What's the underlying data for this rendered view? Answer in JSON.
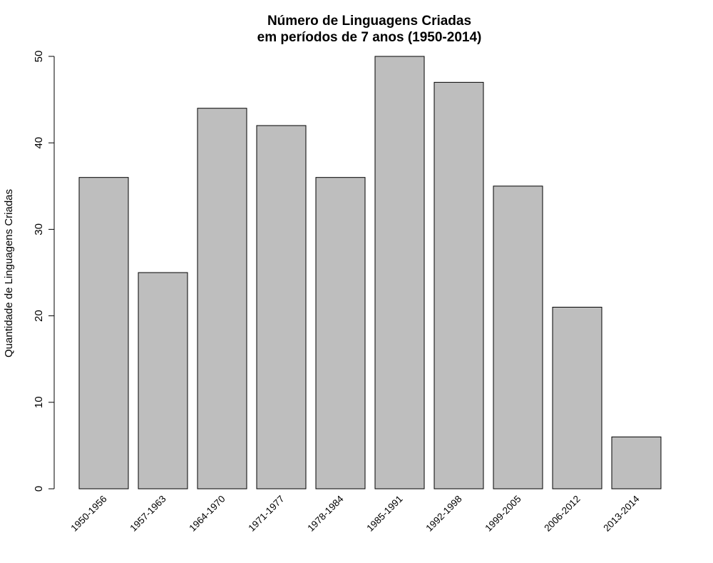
{
  "chart_data": {
    "type": "bar",
    "title_line1": "Número de Linguagens Criadas",
    "title_line2": "em períodos de 7 anos (1950-2014)",
    "xlabel": "",
    "ylabel": "Quantidade de Linguagens Criadas",
    "categories": [
      "1950-1956",
      "1957-1963",
      "1964-1970",
      "1971-1977",
      "1978-1984",
      "1985-1991",
      "1992-1998",
      "1999-2005",
      "2006-2012",
      "2013-2014"
    ],
    "values": [
      36,
      25,
      44,
      42,
      36,
      50,
      47,
      35,
      21,
      6
    ],
    "ylim": [
      0,
      50
    ],
    "yticks": [
      "0",
      "10",
      "20",
      "30",
      "40",
      "50"
    ],
    "grid": false,
    "bar_color": "#bebebe",
    "border_color": "#000000"
  }
}
